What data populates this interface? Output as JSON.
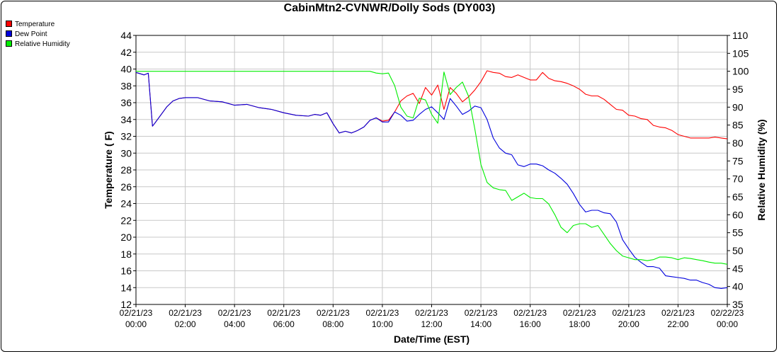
{
  "chart_data": {
    "type": "line",
    "title": "CabinMtn2-CVNWR/Dolly Sods (DY003)",
    "xlabel": "Date/Time (EST)",
    "ylabel": "Temperature ( F)",
    "y2label": "Relative Humidity (%)",
    "xlim": [
      0,
      24
    ],
    "ylim": [
      12,
      44
    ],
    "y2lim": [
      35,
      110
    ],
    "y_ticks": [
      12,
      14,
      16,
      18,
      20,
      22,
      24,
      26,
      28,
      30,
      32,
      34,
      36,
      38,
      40,
      42,
      44
    ],
    "y2_ticks": [
      35,
      40,
      45,
      50,
      55,
      60,
      65,
      70,
      75,
      80,
      85,
      90,
      95,
      100,
      105,
      110
    ],
    "x_ticks": [
      {
        "date": "02/21/23",
        "time": "00:00"
      },
      {
        "date": "02/21/23",
        "time": "02:00"
      },
      {
        "date": "02/21/23",
        "time": "04:00"
      },
      {
        "date": "02/21/23",
        "time": "06:00"
      },
      {
        "date": "02/21/23",
        "time": "08:00"
      },
      {
        "date": "02/21/23",
        "time": "10:00"
      },
      {
        "date": "02/21/23",
        "time": "12:00"
      },
      {
        "date": "02/21/23",
        "time": "14:00"
      },
      {
        "date": "02/21/23",
        "time": "16:00"
      },
      {
        "date": "02/21/23",
        "time": "18:00"
      },
      {
        "date": "02/21/23",
        "time": "20:00"
      },
      {
        "date": "02/21/23",
        "time": "22:00"
      },
      {
        "date": "02/22/23",
        "time": "00:00"
      }
    ],
    "grid": true,
    "legend_position": "top-left",
    "x_hours": [
      0,
      0.33,
      0.5,
      0.67,
      0.75,
      1,
      1.25,
      1.5,
      1.75,
      2,
      2.25,
      2.5,
      3,
      3.5,
      4,
      4.5,
      5,
      5.5,
      6,
      6.5,
      7,
      7.25,
      7.5,
      7.75,
      8,
      8.25,
      8.5,
      8.75,
      9,
      9.25,
      9.5,
      9.75,
      10,
      10.25,
      10.5,
      10.75,
      11,
      11.25,
      11.5,
      11.75,
      12,
      12.25,
      12.5,
      12.75,
      13,
      13.25,
      13.5,
      13.75,
      14,
      14.25,
      14.5,
      14.75,
      15,
      15.25,
      15.5,
      15.75,
      16,
      16.25,
      16.5,
      16.75,
      17,
      17.25,
      17.5,
      17.75,
      18,
      18.25,
      18.5,
      18.75,
      19,
      19.25,
      19.5,
      19.75,
      20,
      20.25,
      20.5,
      20.75,
      21,
      21.25,
      21.5,
      21.75,
      22,
      22.25,
      22.5,
      22.75,
      23,
      23.25,
      23.5,
      23.75,
      24
    ],
    "series": [
      {
        "name": "Temperature",
        "axis": "left",
        "color": "#ff0000",
        "values": [
          39.6,
          39.3,
          39.5,
          33.2,
          33.5,
          34.5,
          35.5,
          36.2,
          36.5,
          36.6,
          36.6,
          36.6,
          36.2,
          36.1,
          35.7,
          35.8,
          35.4,
          35.2,
          34.8,
          34.5,
          34.4,
          34.6,
          34.5,
          34.8,
          33.5,
          32.4,
          32.6,
          32.4,
          32.7,
          33.1,
          33.9,
          34.2,
          33.8,
          33.9,
          34.9,
          36.2,
          36.8,
          37.1,
          35.9,
          37.8,
          36.9,
          38.1,
          35.2,
          37.8,
          37.1,
          36.1,
          36.7,
          37.5,
          38.5,
          39.8,
          39.6,
          39.5,
          39.1,
          39.0,
          39.3,
          39.0,
          38.7,
          38.7,
          39.6,
          38.9,
          38.6,
          38.5,
          38.3,
          38.0,
          37.6,
          37.0,
          36.8,
          36.8,
          36.4,
          35.8,
          35.2,
          35.1,
          34.5,
          34.4,
          34.1,
          34.0,
          33.3,
          33.1,
          33.0,
          32.7,
          32.2,
          32.0,
          31.8,
          31.8,
          31.8,
          31.8,
          31.9,
          31.8,
          31.7
        ]
      },
      {
        "name": "Dew Point",
        "axis": "left",
        "color": "#0000dd",
        "values": [
          39.6,
          39.3,
          39.5,
          33.2,
          33.5,
          34.5,
          35.5,
          36.2,
          36.5,
          36.6,
          36.6,
          36.6,
          36.2,
          36.1,
          35.7,
          35.8,
          35.4,
          35.2,
          34.8,
          34.5,
          34.4,
          34.6,
          34.5,
          34.8,
          33.5,
          32.4,
          32.6,
          32.4,
          32.7,
          33.1,
          33.9,
          34.2,
          33.7,
          33.7,
          34.9,
          34.5,
          33.8,
          33.9,
          34.6,
          35.2,
          35.5,
          34.8,
          34.0,
          36.5,
          35.6,
          34.6,
          35.0,
          35.6,
          35.4,
          34.0,
          31.8,
          30.6,
          30.0,
          29.8,
          28.6,
          28.4,
          28.7,
          28.7,
          28.5,
          28.0,
          27.6,
          27.0,
          26.3,
          25.2,
          23.9,
          23.0,
          23.2,
          23.2,
          22.9,
          22.8,
          21.8,
          19.7,
          18.6,
          17.6,
          17.0,
          16.5,
          16.5,
          16.3,
          15.4,
          15.3,
          15.2,
          15.1,
          14.9,
          14.9,
          14.6,
          14.4,
          14.0,
          13.9,
          14.0
        ]
      },
      {
        "name": "Relative Humidity",
        "axis": "right",
        "color": "#00ee00",
        "values": [
          100,
          100,
          100,
          100,
          100,
          100,
          100,
          100,
          100,
          100,
          100,
          100,
          100,
          100,
          100,
          100,
          100,
          100,
          100,
          100,
          100,
          100,
          100,
          100,
          100,
          100,
          100,
          100,
          100,
          100,
          100,
          99.5,
          99.3,
          99.5,
          96.0,
          90.0,
          87.5,
          87.0,
          92.5,
          92.0,
          88.0,
          85.5,
          99.8,
          93.5,
          95.5,
          97.0,
          93.0,
          84.0,
          74.0,
          69.0,
          67.5,
          67.0,
          66.8,
          64.0,
          65.0,
          66.0,
          64.8,
          64.5,
          64.5,
          63.0,
          60.0,
          56.5,
          55.0,
          57.0,
          57.5,
          57.5,
          56.5,
          57.0,
          54.5,
          52.0,
          50.0,
          48.5,
          48.0,
          47.5,
          47.5,
          47.2,
          47.5,
          48.2,
          48.2,
          48.0,
          47.5,
          48.0,
          47.8,
          47.5,
          47.2,
          46.8,
          46.5,
          46.5,
          46.2
        ]
      }
    ]
  }
}
